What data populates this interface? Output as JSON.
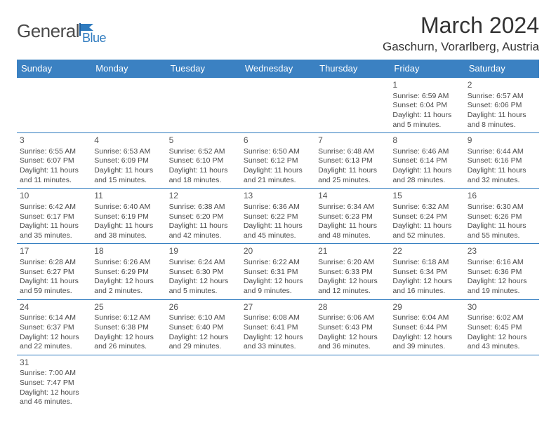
{
  "brand": {
    "text1": "General",
    "text2": "Blue"
  },
  "title": "March 2024",
  "location": "Gaschurn, Vorarlberg, Austria",
  "colors": {
    "header_bg": "#3b81c2",
    "header_text": "#ffffff",
    "border": "#2f7bbf",
    "body_text": "#4a4a4a",
    "title_text": "#333333",
    "brand_gray": "#4a4a4a",
    "brand_blue": "#2f7bbf",
    "background": "#ffffff"
  },
  "typography": {
    "title_fontsize": 32,
    "location_fontsize": 17,
    "header_fontsize": 13,
    "cell_fontsize": 10.5,
    "daynum_fontsize": 12,
    "logo_fontsize": 26
  },
  "dayHeaders": [
    "Sunday",
    "Monday",
    "Tuesday",
    "Wednesday",
    "Thursday",
    "Friday",
    "Saturday"
  ],
  "weeks": [
    [
      null,
      null,
      null,
      null,
      null,
      {
        "n": "1",
        "sunrise": "Sunrise: 6:59 AM",
        "sunset": "Sunset: 6:04 PM",
        "daylight": "Daylight: 11 hours and 5 minutes."
      },
      {
        "n": "2",
        "sunrise": "Sunrise: 6:57 AM",
        "sunset": "Sunset: 6:06 PM",
        "daylight": "Daylight: 11 hours and 8 minutes."
      }
    ],
    [
      {
        "n": "3",
        "sunrise": "Sunrise: 6:55 AM",
        "sunset": "Sunset: 6:07 PM",
        "daylight": "Daylight: 11 hours and 11 minutes."
      },
      {
        "n": "4",
        "sunrise": "Sunrise: 6:53 AM",
        "sunset": "Sunset: 6:09 PM",
        "daylight": "Daylight: 11 hours and 15 minutes."
      },
      {
        "n": "5",
        "sunrise": "Sunrise: 6:52 AM",
        "sunset": "Sunset: 6:10 PM",
        "daylight": "Daylight: 11 hours and 18 minutes."
      },
      {
        "n": "6",
        "sunrise": "Sunrise: 6:50 AM",
        "sunset": "Sunset: 6:12 PM",
        "daylight": "Daylight: 11 hours and 21 minutes."
      },
      {
        "n": "7",
        "sunrise": "Sunrise: 6:48 AM",
        "sunset": "Sunset: 6:13 PM",
        "daylight": "Daylight: 11 hours and 25 minutes."
      },
      {
        "n": "8",
        "sunrise": "Sunrise: 6:46 AM",
        "sunset": "Sunset: 6:14 PM",
        "daylight": "Daylight: 11 hours and 28 minutes."
      },
      {
        "n": "9",
        "sunrise": "Sunrise: 6:44 AM",
        "sunset": "Sunset: 6:16 PM",
        "daylight": "Daylight: 11 hours and 32 minutes."
      }
    ],
    [
      {
        "n": "10",
        "sunrise": "Sunrise: 6:42 AM",
        "sunset": "Sunset: 6:17 PM",
        "daylight": "Daylight: 11 hours and 35 minutes."
      },
      {
        "n": "11",
        "sunrise": "Sunrise: 6:40 AM",
        "sunset": "Sunset: 6:19 PM",
        "daylight": "Daylight: 11 hours and 38 minutes."
      },
      {
        "n": "12",
        "sunrise": "Sunrise: 6:38 AM",
        "sunset": "Sunset: 6:20 PM",
        "daylight": "Daylight: 11 hours and 42 minutes."
      },
      {
        "n": "13",
        "sunrise": "Sunrise: 6:36 AM",
        "sunset": "Sunset: 6:22 PM",
        "daylight": "Daylight: 11 hours and 45 minutes."
      },
      {
        "n": "14",
        "sunrise": "Sunrise: 6:34 AM",
        "sunset": "Sunset: 6:23 PM",
        "daylight": "Daylight: 11 hours and 48 minutes."
      },
      {
        "n": "15",
        "sunrise": "Sunrise: 6:32 AM",
        "sunset": "Sunset: 6:24 PM",
        "daylight": "Daylight: 11 hours and 52 minutes."
      },
      {
        "n": "16",
        "sunrise": "Sunrise: 6:30 AM",
        "sunset": "Sunset: 6:26 PM",
        "daylight": "Daylight: 11 hours and 55 minutes."
      }
    ],
    [
      {
        "n": "17",
        "sunrise": "Sunrise: 6:28 AM",
        "sunset": "Sunset: 6:27 PM",
        "daylight": "Daylight: 11 hours and 59 minutes."
      },
      {
        "n": "18",
        "sunrise": "Sunrise: 6:26 AM",
        "sunset": "Sunset: 6:29 PM",
        "daylight": "Daylight: 12 hours and 2 minutes."
      },
      {
        "n": "19",
        "sunrise": "Sunrise: 6:24 AM",
        "sunset": "Sunset: 6:30 PM",
        "daylight": "Daylight: 12 hours and 5 minutes."
      },
      {
        "n": "20",
        "sunrise": "Sunrise: 6:22 AM",
        "sunset": "Sunset: 6:31 PM",
        "daylight": "Daylight: 12 hours and 9 minutes."
      },
      {
        "n": "21",
        "sunrise": "Sunrise: 6:20 AM",
        "sunset": "Sunset: 6:33 PM",
        "daylight": "Daylight: 12 hours and 12 minutes."
      },
      {
        "n": "22",
        "sunrise": "Sunrise: 6:18 AM",
        "sunset": "Sunset: 6:34 PM",
        "daylight": "Daylight: 12 hours and 16 minutes."
      },
      {
        "n": "23",
        "sunrise": "Sunrise: 6:16 AM",
        "sunset": "Sunset: 6:36 PM",
        "daylight": "Daylight: 12 hours and 19 minutes."
      }
    ],
    [
      {
        "n": "24",
        "sunrise": "Sunrise: 6:14 AM",
        "sunset": "Sunset: 6:37 PM",
        "daylight": "Daylight: 12 hours and 22 minutes."
      },
      {
        "n": "25",
        "sunrise": "Sunrise: 6:12 AM",
        "sunset": "Sunset: 6:38 PM",
        "daylight": "Daylight: 12 hours and 26 minutes."
      },
      {
        "n": "26",
        "sunrise": "Sunrise: 6:10 AM",
        "sunset": "Sunset: 6:40 PM",
        "daylight": "Daylight: 12 hours and 29 minutes."
      },
      {
        "n": "27",
        "sunrise": "Sunrise: 6:08 AM",
        "sunset": "Sunset: 6:41 PM",
        "daylight": "Daylight: 12 hours and 33 minutes."
      },
      {
        "n": "28",
        "sunrise": "Sunrise: 6:06 AM",
        "sunset": "Sunset: 6:43 PM",
        "daylight": "Daylight: 12 hours and 36 minutes."
      },
      {
        "n": "29",
        "sunrise": "Sunrise: 6:04 AM",
        "sunset": "Sunset: 6:44 PM",
        "daylight": "Daylight: 12 hours and 39 minutes."
      },
      {
        "n": "30",
        "sunrise": "Sunrise: 6:02 AM",
        "sunset": "Sunset: 6:45 PM",
        "daylight": "Daylight: 12 hours and 43 minutes."
      }
    ],
    [
      {
        "n": "31",
        "sunrise": "Sunrise: 7:00 AM",
        "sunset": "Sunset: 7:47 PM",
        "daylight": "Daylight: 12 hours and 46 minutes."
      },
      null,
      null,
      null,
      null,
      null,
      null
    ]
  ]
}
